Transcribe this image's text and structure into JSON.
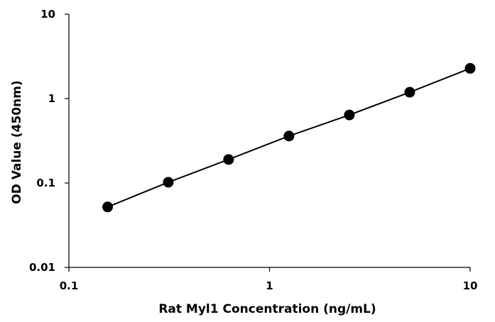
{
  "chart_data": {
    "type": "scatter",
    "title": "",
    "xlabel": "Rat Myl1 Concentration (ng/mL)",
    "ylabel": "OD Value (450nm)",
    "x_scale": "log",
    "y_scale": "log",
    "xlim": [
      0.1,
      10
    ],
    "ylim": [
      0.01,
      10
    ],
    "x_ticks": [
      0.1,
      1,
      10
    ],
    "x_tick_labels": [
      "0.1",
      "1",
      "10"
    ],
    "y_ticks": [
      0.01,
      0.1,
      1,
      10
    ],
    "y_tick_labels": [
      "0.01",
      "0.1",
      "1",
      "10"
    ],
    "grid": false,
    "legend": "none",
    "trendline": "power fit through points",
    "marker_color": "#000000",
    "line_color": "#000000",
    "series": [
      {
        "x": [
          0.156,
          0.313,
          0.625,
          1.25,
          2.5,
          5,
          10
        ],
        "y": [
          0.052,
          0.102,
          0.19,
          0.36,
          0.64,
          1.19,
          2.28
        ]
      }
    ]
  }
}
